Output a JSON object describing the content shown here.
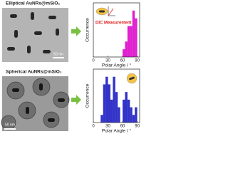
{
  "panels": [
    {
      "label": "Elliptical AuNRs@mSiO₂",
      "scale_bar": "50 nm"
    },
    {
      "label": "Spherical AuNRs@mSiO₂",
      "scale_bar": "50 nm"
    }
  ],
  "chart_data": [
    {
      "type": "histogram",
      "x_label": "Polar Angle / °",
      "y_label": "Occurrence",
      "annotation": "DIC Measurement",
      "bins": [
        60,
        65,
        70,
        75,
        80,
        85,
        90
      ],
      "values": [
        1,
        2,
        4,
        4,
        6,
        5
      ],
      "color": "#e020d0",
      "xlim": [
        0,
        95
      ],
      "xticks": [
        0,
        30,
        60,
        90
      ],
      "ylim": [
        0,
        7
      ]
    },
    {
      "type": "histogram",
      "x_label": "Polar Angle / °",
      "y_label": "Occurrence",
      "bins": [
        15,
        20,
        25,
        30,
        35,
        40,
        45,
        50,
        55,
        60,
        65,
        70,
        75,
        80,
        85,
        90
      ],
      "values": [
        1,
        5,
        6,
        5,
        3,
        6,
        4,
        2,
        0,
        3,
        4,
        3,
        2,
        1,
        2
      ],
      "color": "#3232c8",
      "xlim": [
        0,
        95
      ],
      "xticks": [
        0,
        30,
        60,
        90
      ],
      "ylim": [
        0,
        7
      ]
    }
  ]
}
